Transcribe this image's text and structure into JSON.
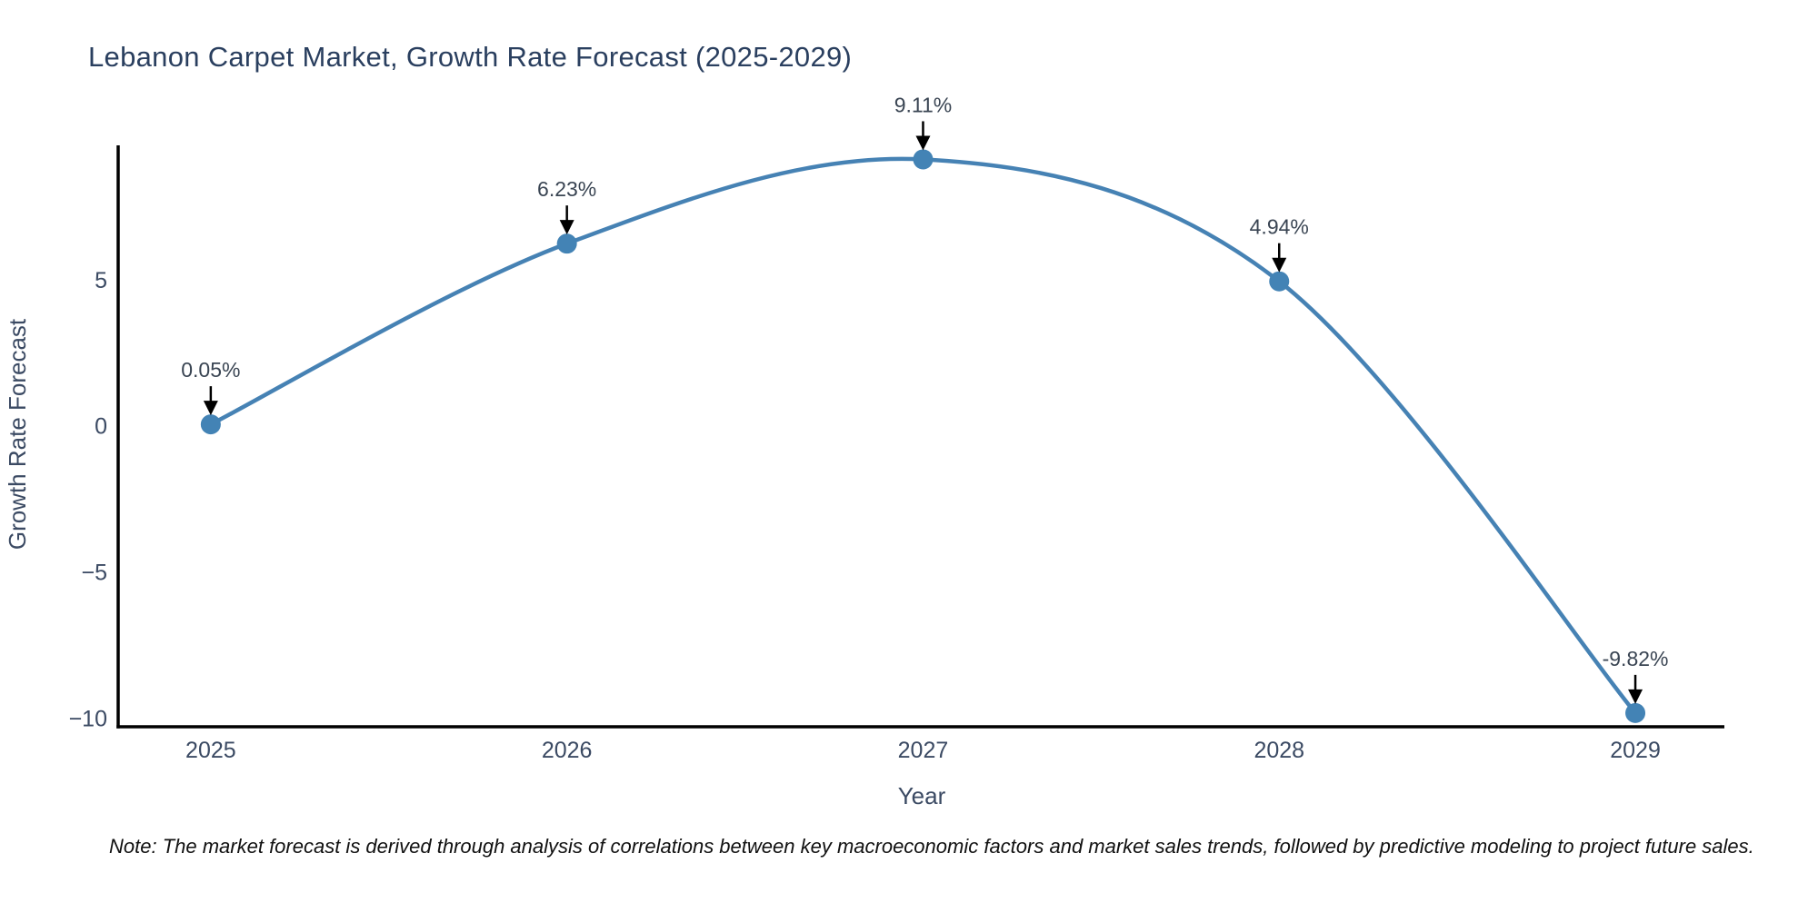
{
  "note": "Note: The market forecast is derived through analysis of correlations between key macroeconomic factors and market sales trends, followed by predictive modeling to project future sales.",
  "chart_data": {
    "type": "line",
    "title": "Lebanon Carpet Market, Growth Rate Forecast (2025-2029)",
    "x": [
      2025,
      2026,
      2027,
      2028,
      2029
    ],
    "series": [
      {
        "name": "Growth Rate Forecast",
        "values": [
          0.05,
          6.23,
          9.11,
          4.94,
          -9.82
        ]
      }
    ],
    "point_labels": [
      "0.05%",
      "6.23%",
      "9.11%",
      "4.94%",
      "-9.82%"
    ],
    "xlabel": "Year",
    "ylabel": "Growth Rate Forecast",
    "xtick_labels": [
      "2025",
      "2026",
      "2027",
      "2028",
      "2029"
    ],
    "ytick_values": [
      5,
      0,
      -5,
      -10
    ],
    "xlim": [
      2024.74,
      2029.25
    ],
    "ylim": [
      -10.29,
      9.59
    ],
    "grid": false,
    "legend": "none",
    "line_shape": "spline",
    "colors": {
      "line": "#4682b4",
      "marker": "#4383b5",
      "title_text": "#2a3f5f",
      "axis_text": "#3b4a63",
      "annotation_text": "#3a4553",
      "arrow": "#000000",
      "axis_line": "#000000",
      "note_text": "#111111",
      "background": "#ffffff"
    }
  }
}
